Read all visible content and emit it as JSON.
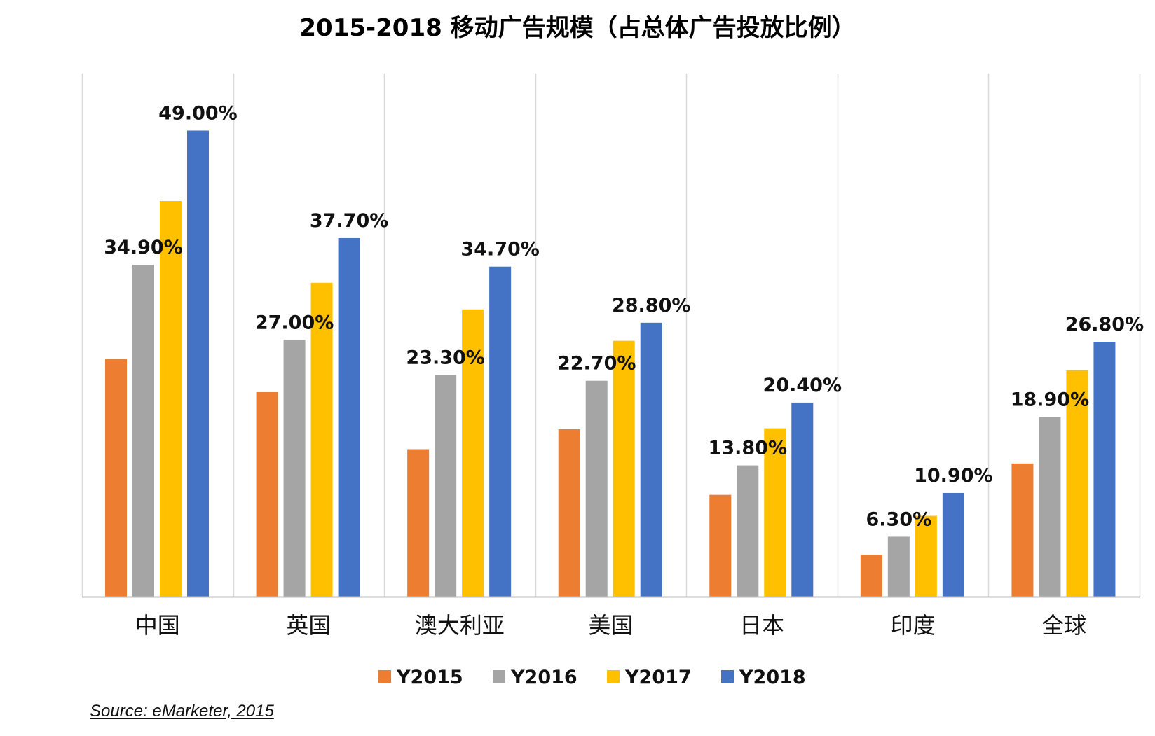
{
  "chart_data": {
    "type": "bar",
    "title": "2015-2018 移动广告规模（占总体广告投放比例）",
    "xlabel": "",
    "ylabel": "",
    "ylim": [
      0,
      55
    ],
    "grid": "vertical-category-separators",
    "legend_position": "bottom",
    "categories": [
      "中国",
      "英国",
      "澳大利亚",
      "美国",
      "日本",
      "印度",
      "全球"
    ],
    "series": [
      {
        "name": "Y2015",
        "color": "#ED7D31",
        "values": [
          25.0,
          21.5,
          15.5,
          17.6,
          10.7,
          4.4,
          14.0
        ],
        "labels": [
          "",
          "",
          "",
          "",
          "",
          "",
          ""
        ]
      },
      {
        "name": "Y2016",
        "color": "#A5A5A5",
        "values": [
          34.9,
          27.0,
          23.3,
          22.7,
          13.8,
          6.3,
          18.9
        ],
        "labels": [
          "34.90%",
          "27.00%",
          "23.30%",
          "22.70%",
          "13.80%",
          "6.30%",
          "18.90%"
        ]
      },
      {
        "name": "Y2017",
        "color": "#FFC000",
        "values": [
          41.6,
          33.0,
          30.2,
          26.9,
          17.7,
          8.5,
          23.8
        ],
        "labels": [
          "",
          "",
          "",
          "",
          "",
          "",
          ""
        ]
      },
      {
        "name": "Y2018",
        "color": "#4472C4",
        "values": [
          49.0,
          37.7,
          34.7,
          28.8,
          20.4,
          10.9,
          26.8
        ],
        "labels": [
          "49.00%",
          "37.70%",
          "34.70%",
          "28.80%",
          "20.40%",
          "10.90%",
          "26.80%"
        ]
      }
    ]
  },
  "source": "Source: eMarketer, 2015"
}
